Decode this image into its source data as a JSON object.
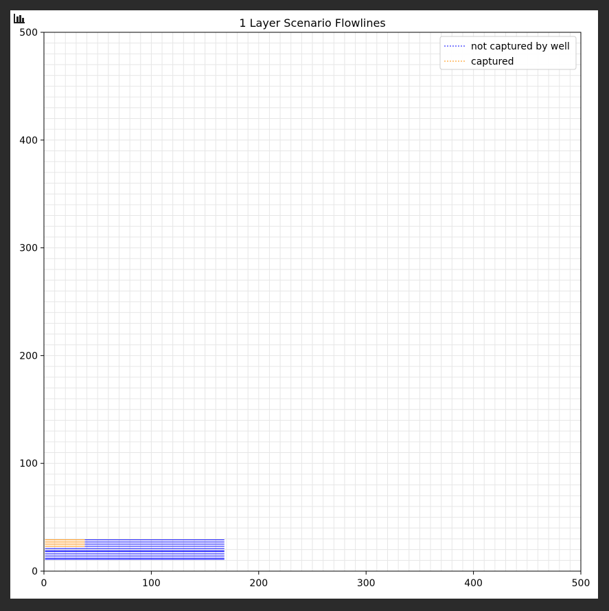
{
  "colors": {
    "not_captured": "#0000ff",
    "captured": "#ff8c00",
    "grid": "#e6e6e6",
    "axes": "#000000"
  },
  "toolbar": {
    "icon": "bar-chart-icon"
  },
  "chart_data": {
    "type": "line",
    "title": "1 Layer Scenario Flowlines",
    "xlabel": "",
    "ylabel": "",
    "xlim": [
      0,
      500
    ],
    "ylim": [
      0,
      500
    ],
    "xticks": [
      "0",
      "100",
      "200",
      "300",
      "400",
      "500"
    ],
    "yticks": [
      "0",
      "100",
      "200",
      "300",
      "400",
      "500"
    ],
    "grid": true,
    "grid_step": 10,
    "legend": {
      "location": "upper right",
      "entries": [
        {
          "label": "not captured by well",
          "style": "dashed",
          "color": "#0000ff"
        },
        {
          "label": "captured",
          "style": "dashed",
          "color": "#ff8c00"
        }
      ]
    },
    "series": [
      {
        "name": "not captured by well",
        "color": "#0000ff",
        "lines": [
          {
            "x": [
              38,
              168
            ],
            "y": [
              29,
              29
            ]
          },
          {
            "x": [
              38,
              168
            ],
            "y": [
              27,
              27
            ]
          },
          {
            "x": [
              38,
              168
            ],
            "y": [
              25,
              25
            ]
          },
          {
            "x": [
              38,
              168
            ],
            "y": [
              23,
              23
            ]
          },
          {
            "x": [
              1,
              168
            ],
            "y": [
              21,
              21
            ]
          },
          {
            "x": [
              1,
              168
            ],
            "y": [
              19,
              19
            ]
          },
          {
            "x": [
              1,
              168
            ],
            "y": [
              18,
              18
            ]
          },
          {
            "x": [
              1,
              168
            ],
            "y": [
              16,
              16
            ]
          },
          {
            "x": [
              1,
              168
            ],
            "y": [
              14,
              14
            ]
          },
          {
            "x": [
              1,
              168
            ],
            "y": [
              12,
              12
            ]
          },
          {
            "x": [
              1,
              168
            ],
            "y": [
              11,
              11
            ]
          }
        ]
      },
      {
        "name": "captured",
        "color": "#ff8c00",
        "lines": [
          {
            "x": [
              1,
              38
            ],
            "y": [
              29,
              29
            ]
          },
          {
            "x": [
              1,
              38
            ],
            "y": [
              27,
              27
            ]
          },
          {
            "x": [
              1,
              38
            ],
            "y": [
              25,
              25
            ]
          },
          {
            "x": [
              1,
              38
            ],
            "y": [
              23,
              23
            ]
          }
        ]
      }
    ]
  }
}
